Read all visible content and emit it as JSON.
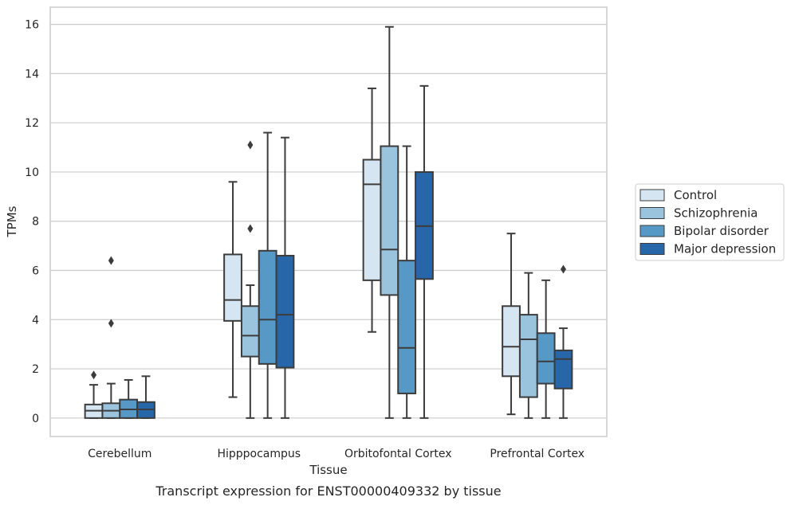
{
  "chart_data": {
    "type": "box",
    "xlabel": "Tissue",
    "ylabel": "TPMs",
    "caption": "Transcript expression for ENST00000409332 by tissue",
    "ylim": [
      -0.75,
      16.7
    ],
    "yticks": [
      0,
      2,
      4,
      6,
      8,
      10,
      12,
      14,
      16
    ],
    "grid": "horizontal",
    "legend_position": "right",
    "categories": [
      "Cerebellum",
      "Hipppocampus",
      "Orbitofontal Cortex",
      "Prefrontal Cortex"
    ],
    "series": [
      {
        "name": "Control",
        "color": "#d6e5f2",
        "boxes": [
          {
            "whisker_low": 0,
            "q1": 0,
            "median": 0.3,
            "q3": 0.55,
            "whisker_high": 1.35,
            "outliers": [
              1.75
            ]
          },
          {
            "whisker_low": 0.85,
            "q1": 3.95,
            "median": 4.8,
            "q3": 6.65,
            "whisker_high": 9.6,
            "outliers": []
          },
          {
            "whisker_low": 3.5,
            "q1": 5.6,
            "median": 9.5,
            "q3": 10.5,
            "whisker_high": 13.4,
            "outliers": []
          },
          {
            "whisker_low": 0.15,
            "q1": 1.7,
            "median": 2.9,
            "q3": 4.55,
            "whisker_high": 7.5,
            "outliers": []
          }
        ]
      },
      {
        "name": "Schizophrenia",
        "color": "#9ac3de",
        "boxes": [
          {
            "whisker_low": 0,
            "q1": 0,
            "median": 0.3,
            "q3": 0.6,
            "whisker_high": 1.4,
            "outliers": [
              3.85,
              6.4
            ]
          },
          {
            "whisker_low": 0,
            "q1": 2.5,
            "median": 3.35,
            "q3": 4.55,
            "whisker_high": 5.4,
            "outliers": [
              7.7,
              11.1
            ]
          },
          {
            "whisker_low": 0,
            "q1": 5.0,
            "median": 6.85,
            "q3": 11.05,
            "whisker_high": 15.9,
            "outliers": []
          },
          {
            "whisker_low": 0,
            "q1": 0.85,
            "median": 3.2,
            "q3": 4.2,
            "whisker_high": 5.9,
            "outliers": []
          }
        ]
      },
      {
        "name": "Bipolar disorder",
        "color": "#5698c6",
        "boxes": [
          {
            "whisker_low": 0,
            "q1": 0,
            "median": 0.35,
            "q3": 0.75,
            "whisker_high": 1.55,
            "outliers": []
          },
          {
            "whisker_low": 0,
            "q1": 2.2,
            "median": 4.0,
            "q3": 6.8,
            "whisker_high": 11.6,
            "outliers": []
          },
          {
            "whisker_low": 0,
            "q1": 1.0,
            "median": 2.85,
            "q3": 6.4,
            "whisker_high": 11.05,
            "outliers": []
          },
          {
            "whisker_low": 0,
            "q1": 1.4,
            "median": 2.3,
            "q3": 3.45,
            "whisker_high": 5.6,
            "outliers": []
          }
        ]
      },
      {
        "name": "Major depression",
        "color": "#2666a9",
        "boxes": [
          {
            "whisker_low": 0,
            "q1": 0,
            "median": 0.35,
            "q3": 0.65,
            "whisker_high": 1.7,
            "outliers": []
          },
          {
            "whisker_low": 0,
            "q1": 2.05,
            "median": 4.2,
            "q3": 6.6,
            "whisker_high": 11.4,
            "outliers": []
          },
          {
            "whisker_low": 0,
            "q1": 5.65,
            "median": 7.8,
            "q3": 10.0,
            "whisker_high": 13.5,
            "outliers": []
          },
          {
            "whisker_low": 0,
            "q1": 1.2,
            "median": 2.4,
            "q3": 2.75,
            "whisker_high": 3.65,
            "outliers": [
              6.05
            ]
          }
        ]
      }
    ]
  }
}
